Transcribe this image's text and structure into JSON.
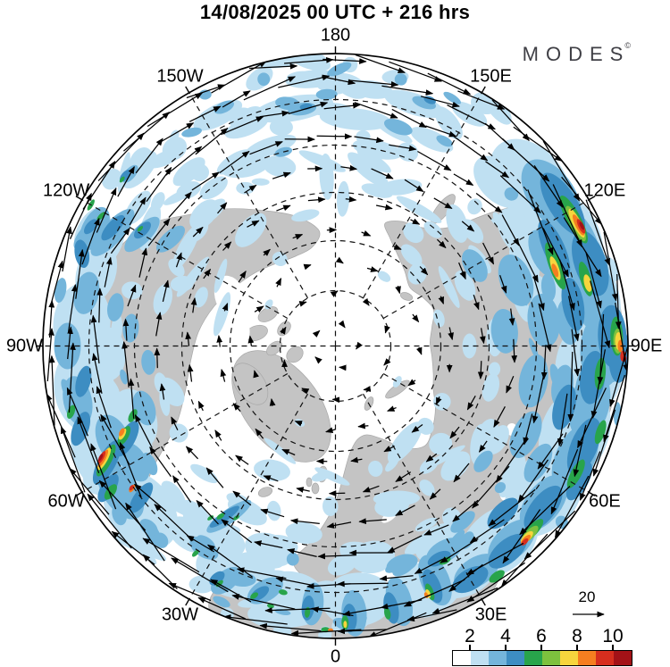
{
  "header": {
    "title": "14/08/2025  00 UTC  + 216 hrs",
    "logo": "MODES",
    "logo_mark": "©"
  },
  "map": {
    "lon_labels": [
      {
        "text": "180",
        "angle": 0
      },
      {
        "text": "150E",
        "angle": 30
      },
      {
        "text": "120E",
        "angle": 60
      },
      {
        "text": "90E",
        "angle": 90
      },
      {
        "text": "60E",
        "angle": 120
      },
      {
        "text": "30E",
        "angle": 150
      },
      {
        "text": "0",
        "angle": 180
      },
      {
        "text": "30W",
        "angle": 210
      },
      {
        "text": "60W",
        "angle": 240
      },
      {
        "text": "90W",
        "angle": 270
      },
      {
        "text": "120W",
        "angle": 300
      },
      {
        "text": "150W",
        "angle": 330
      }
    ],
    "land_color": "#c4c4c4",
    "ocean_color": "#ffffff"
  },
  "legend": {
    "ref_label": "20"
  },
  "colorbar": {
    "tick_labels": [
      "2",
      "4",
      "6",
      "8",
      "10"
    ],
    "colors": [
      "#ffffff",
      "#bfe0f2",
      "#74b5db",
      "#3d8dc2",
      "#28a44b",
      "#7dc13e",
      "#f6d53d",
      "#f57e20",
      "#d62e1e",
      "#a31217"
    ]
  },
  "chart_data": {
    "type": "heatmap",
    "title": "14/08/2025  00 UTC  + 216 hrs",
    "brand": "MODES",
    "meridian_labels": [
      "180",
      "150E",
      "120E",
      "90E",
      "60E",
      "30E",
      "0",
      "30W",
      "60W",
      "90W",
      "120W",
      "150W"
    ],
    "colorbar_tick_labels": [
      2,
      4,
      6,
      8,
      10
    ],
    "colorbar_colors": [
      "#ffffff",
      "#bfe0f2",
      "#74b5db",
      "#3d8dc2",
      "#28a44b",
      "#7dc13e",
      "#f6d53d",
      "#f57e20",
      "#d62e1e",
      "#a31217"
    ],
    "vector_reference_value": 20,
    "legend_position": "bottom-right"
  }
}
